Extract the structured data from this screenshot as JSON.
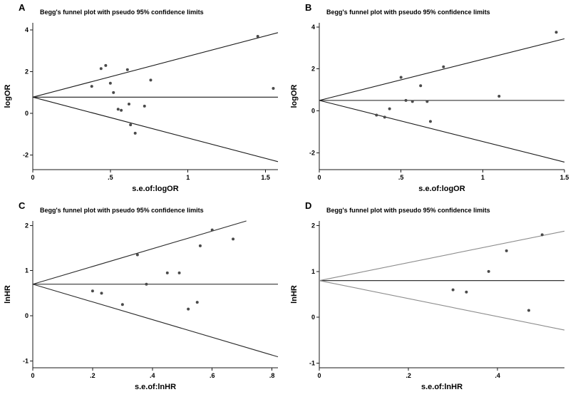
{
  "figure": {
    "background": "#ffffff",
    "shared_title": "Begg's funnel plot with pseudo 95% confidence limits"
  },
  "chart_data": [
    {
      "type": "scatter",
      "label": "A",
      "title": "Begg's funnel plot with pseudo 95% confidence limits",
      "xlabel": "s.e.of:logOR",
      "ylabel": "logOR",
      "xlim": [
        0,
        1.58
      ],
      "ylim": [
        -2.7,
        4.35
      ],
      "xticks": [
        {
          "v": 0,
          "label": "0"
        },
        {
          "v": 0.5,
          "label": ".5"
        },
        {
          "v": 1,
          "label": "1"
        },
        {
          "v": 1.5,
          "label": "1.5"
        }
      ],
      "yticks": [
        {
          "v": -2,
          "label": "-2"
        },
        {
          "v": 0,
          "label": "0"
        },
        {
          "v": 2,
          "label": "2"
        },
        {
          "v": 4,
          "label": "4"
        }
      ],
      "funnel": {
        "center": 0.78,
        "slope": 1.96
      },
      "colors": {
        "center": "#1a1a1a",
        "limits": "#1a1a1a",
        "points": "#4a4a4a"
      },
      "points": [
        [
          0.38,
          1.3
        ],
        [
          0.44,
          2.15
        ],
        [
          0.47,
          2.3
        ],
        [
          0.5,
          1.45
        ],
        [
          0.52,
          1.0
        ],
        [
          0.55,
          0.2
        ],
        [
          0.57,
          0.15
        ],
        [
          0.61,
          2.1
        ],
        [
          0.62,
          0.45
        ],
        [
          0.63,
          -0.55
        ],
        [
          0.66,
          -0.95
        ],
        [
          0.72,
          0.35
        ],
        [
          0.76,
          1.6
        ],
        [
          1.45,
          3.7
        ],
        [
          1.55,
          1.2
        ]
      ]
    },
    {
      "type": "scatter",
      "label": "B",
      "title": "Begg's funnel plot with pseudo 95% confidence limits",
      "xlabel": "s.e.of:logOR",
      "ylabel": "logOR",
      "xlim": [
        0,
        1.5
      ],
      "ylim": [
        -2.8,
        4.2
      ],
      "xticks": [
        {
          "v": 0,
          "label": "0"
        },
        {
          "v": 0.5,
          "label": ".5"
        },
        {
          "v": 1,
          "label": "1"
        },
        {
          "v": 1.5,
          "label": "1.5"
        }
      ],
      "yticks": [
        {
          "v": -2,
          "label": "-2"
        },
        {
          "v": 0,
          "label": "0"
        },
        {
          "v": 2,
          "label": "2"
        },
        {
          "v": 4,
          "label": "4"
        }
      ],
      "funnel": {
        "center": 0.5,
        "slope": 1.96
      },
      "colors": {
        "center": "#1a1a1a",
        "limits": "#1a1a1a",
        "points": "#4a4a4a"
      },
      "points": [
        [
          0.35,
          -0.2
        ],
        [
          0.4,
          -0.3
        ],
        [
          0.43,
          0.1
        ],
        [
          0.5,
          1.6
        ],
        [
          0.53,
          0.5
        ],
        [
          0.57,
          0.45
        ],
        [
          0.62,
          1.2
        ],
        [
          0.66,
          0.45
        ],
        [
          0.68,
          -0.5
        ],
        [
          0.76,
          2.1
        ],
        [
          1.1,
          0.7
        ],
        [
          1.45,
          3.75
        ]
      ]
    },
    {
      "type": "scatter",
      "label": "C",
      "title": "Begg's funnel plot with pseudo 95% confidence limits",
      "xlabel": "s.e.of:lnHR",
      "ylabel": "lnHR",
      "xlim": [
        0,
        0.82
      ],
      "ylim": [
        -1.15,
        2.1
      ],
      "xticks": [
        {
          "v": 0,
          "label": "0"
        },
        {
          "v": 0.2,
          "label": ".2"
        },
        {
          "v": 0.4,
          "label": ".4"
        },
        {
          "v": 0.6,
          "label": ".6"
        },
        {
          "v": 0.8,
          "label": ".8"
        }
      ],
      "yticks": [
        {
          "v": -1,
          "label": "-1"
        },
        {
          "v": 0,
          "label": "0"
        },
        {
          "v": 1,
          "label": "1"
        },
        {
          "v": 2,
          "label": "2"
        }
      ],
      "funnel": {
        "center": 0.7,
        "slope": 1.96
      },
      "colors": {
        "center": "#1a1a1a",
        "limits": "#2a2a2a",
        "points": "#4a4a4a"
      },
      "points": [
        [
          0.2,
          0.55
        ],
        [
          0.23,
          0.5
        ],
        [
          0.3,
          0.25
        ],
        [
          0.35,
          1.35
        ],
        [
          0.38,
          0.7
        ],
        [
          0.45,
          0.95
        ],
        [
          0.49,
          0.95
        ],
        [
          0.52,
          0.15
        ],
        [
          0.55,
          0.3
        ],
        [
          0.56,
          1.55
        ],
        [
          0.6,
          1.9
        ],
        [
          0.67,
          1.7
        ]
      ]
    },
    {
      "type": "scatter",
      "label": "D",
      "title": "Begg's funnel plot with pseudo 95% confidence limits",
      "xlabel": "s.e.of:lnHR",
      "ylabel": "lnHR",
      "xlim": [
        0,
        0.55
      ],
      "ylim": [
        -1.1,
        2.1
      ],
      "xticks": [
        {
          "v": 0,
          "label": "0"
        },
        {
          "v": 0.2,
          "label": ".2"
        },
        {
          "v": 0.4,
          "label": ".4"
        }
      ],
      "yticks": [
        {
          "v": -1,
          "label": "-1"
        },
        {
          "v": 0,
          "label": "0"
        },
        {
          "v": 1,
          "label": "1"
        },
        {
          "v": 2,
          "label": "2"
        }
      ],
      "funnel": {
        "center": 0.8,
        "slope": 1.96
      },
      "colors": {
        "center": "#1a1a1a",
        "limits": "#8c8c8c",
        "points": "#4a4a4a"
      },
      "points": [
        [
          0.3,
          0.6
        ],
        [
          0.33,
          0.55
        ],
        [
          0.38,
          1.0
        ],
        [
          0.42,
          1.45
        ],
        [
          0.47,
          0.15
        ],
        [
          0.5,
          1.8
        ]
      ]
    }
  ]
}
